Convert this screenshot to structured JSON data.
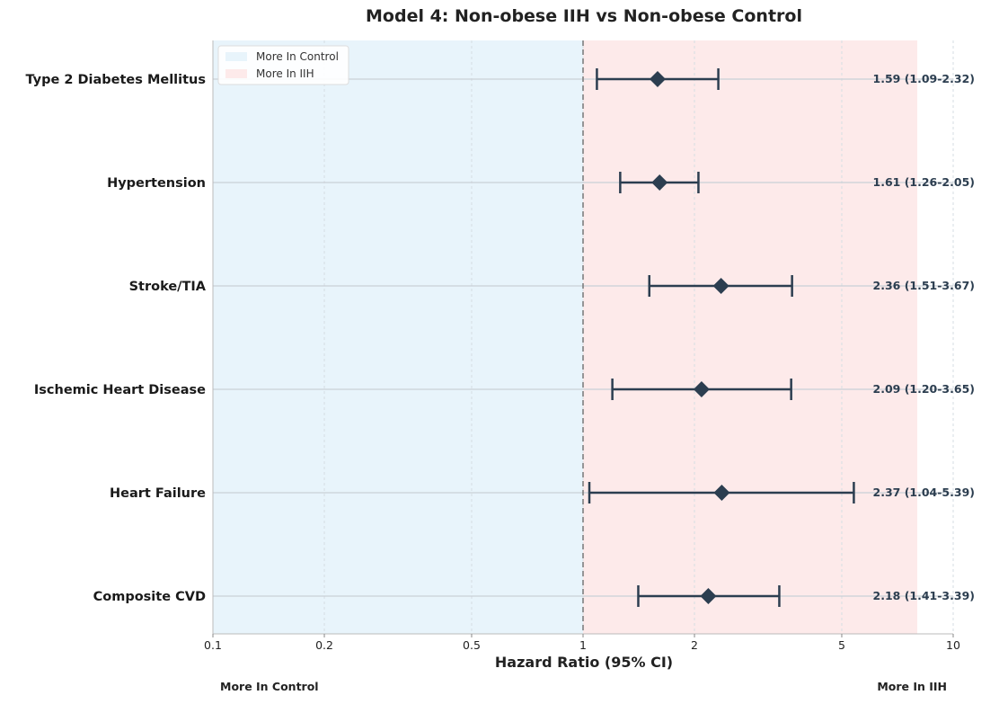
{
  "chart_data": {
    "type": "forest",
    "title": "Model 4: Non-obese IIH vs Non-obese Control",
    "xlabel": "Hazard Ratio (95% CI)",
    "xscale": "log",
    "xlim": [
      0.1,
      10
    ],
    "xticks": [
      0.1,
      0.2,
      0.5,
      1,
      2,
      5,
      10
    ],
    "xtick_labels": [
      "0.1",
      "0.2",
      "0.5",
      "1",
      "2",
      "5",
      "10"
    ],
    "reference_line": 1,
    "shaded_regions": [
      {
        "label": "More In Control",
        "from": 0.1,
        "to": 1,
        "color": "#e8f4fb"
      },
      {
        "label": "More In IIH",
        "from": 1,
        "to": 8,
        "color": "#fdeaea"
      }
    ],
    "legend": {
      "position": "top-left",
      "entries": [
        "More In Control",
        "More In IIH"
      ]
    },
    "bottom_notes": {
      "left": "More In Control",
      "right": "More In IIH"
    },
    "marker_color": "#2c3e50",
    "grid": true,
    "rows": [
      {
        "label": "Type 2 Diabetes Mellitus",
        "hr": 1.59,
        "lo": 1.09,
        "hi": 2.32,
        "annotation": "1.59 (1.09-2.32)"
      },
      {
        "label": "Hypertension",
        "hr": 1.61,
        "lo": 1.26,
        "hi": 2.05,
        "annotation": "1.61 (1.26-2.05)"
      },
      {
        "label": "Stroke/TIA",
        "hr": 2.36,
        "lo": 1.51,
        "hi": 3.67,
        "annotation": "2.36 (1.51-3.67)"
      },
      {
        "label": "Ischemic Heart Disease",
        "hr": 2.09,
        "lo": 1.2,
        "hi": 3.65,
        "annotation": "2.09 (1.20-3.65)"
      },
      {
        "label": "Heart Failure",
        "hr": 2.37,
        "lo": 1.04,
        "hi": 5.39,
        "annotation": "2.37 (1.04-5.39)"
      },
      {
        "label": "Composite CVD",
        "hr": 2.18,
        "lo": 1.41,
        "hi": 3.39,
        "annotation": "2.18 (1.41-3.39)"
      }
    ]
  }
}
